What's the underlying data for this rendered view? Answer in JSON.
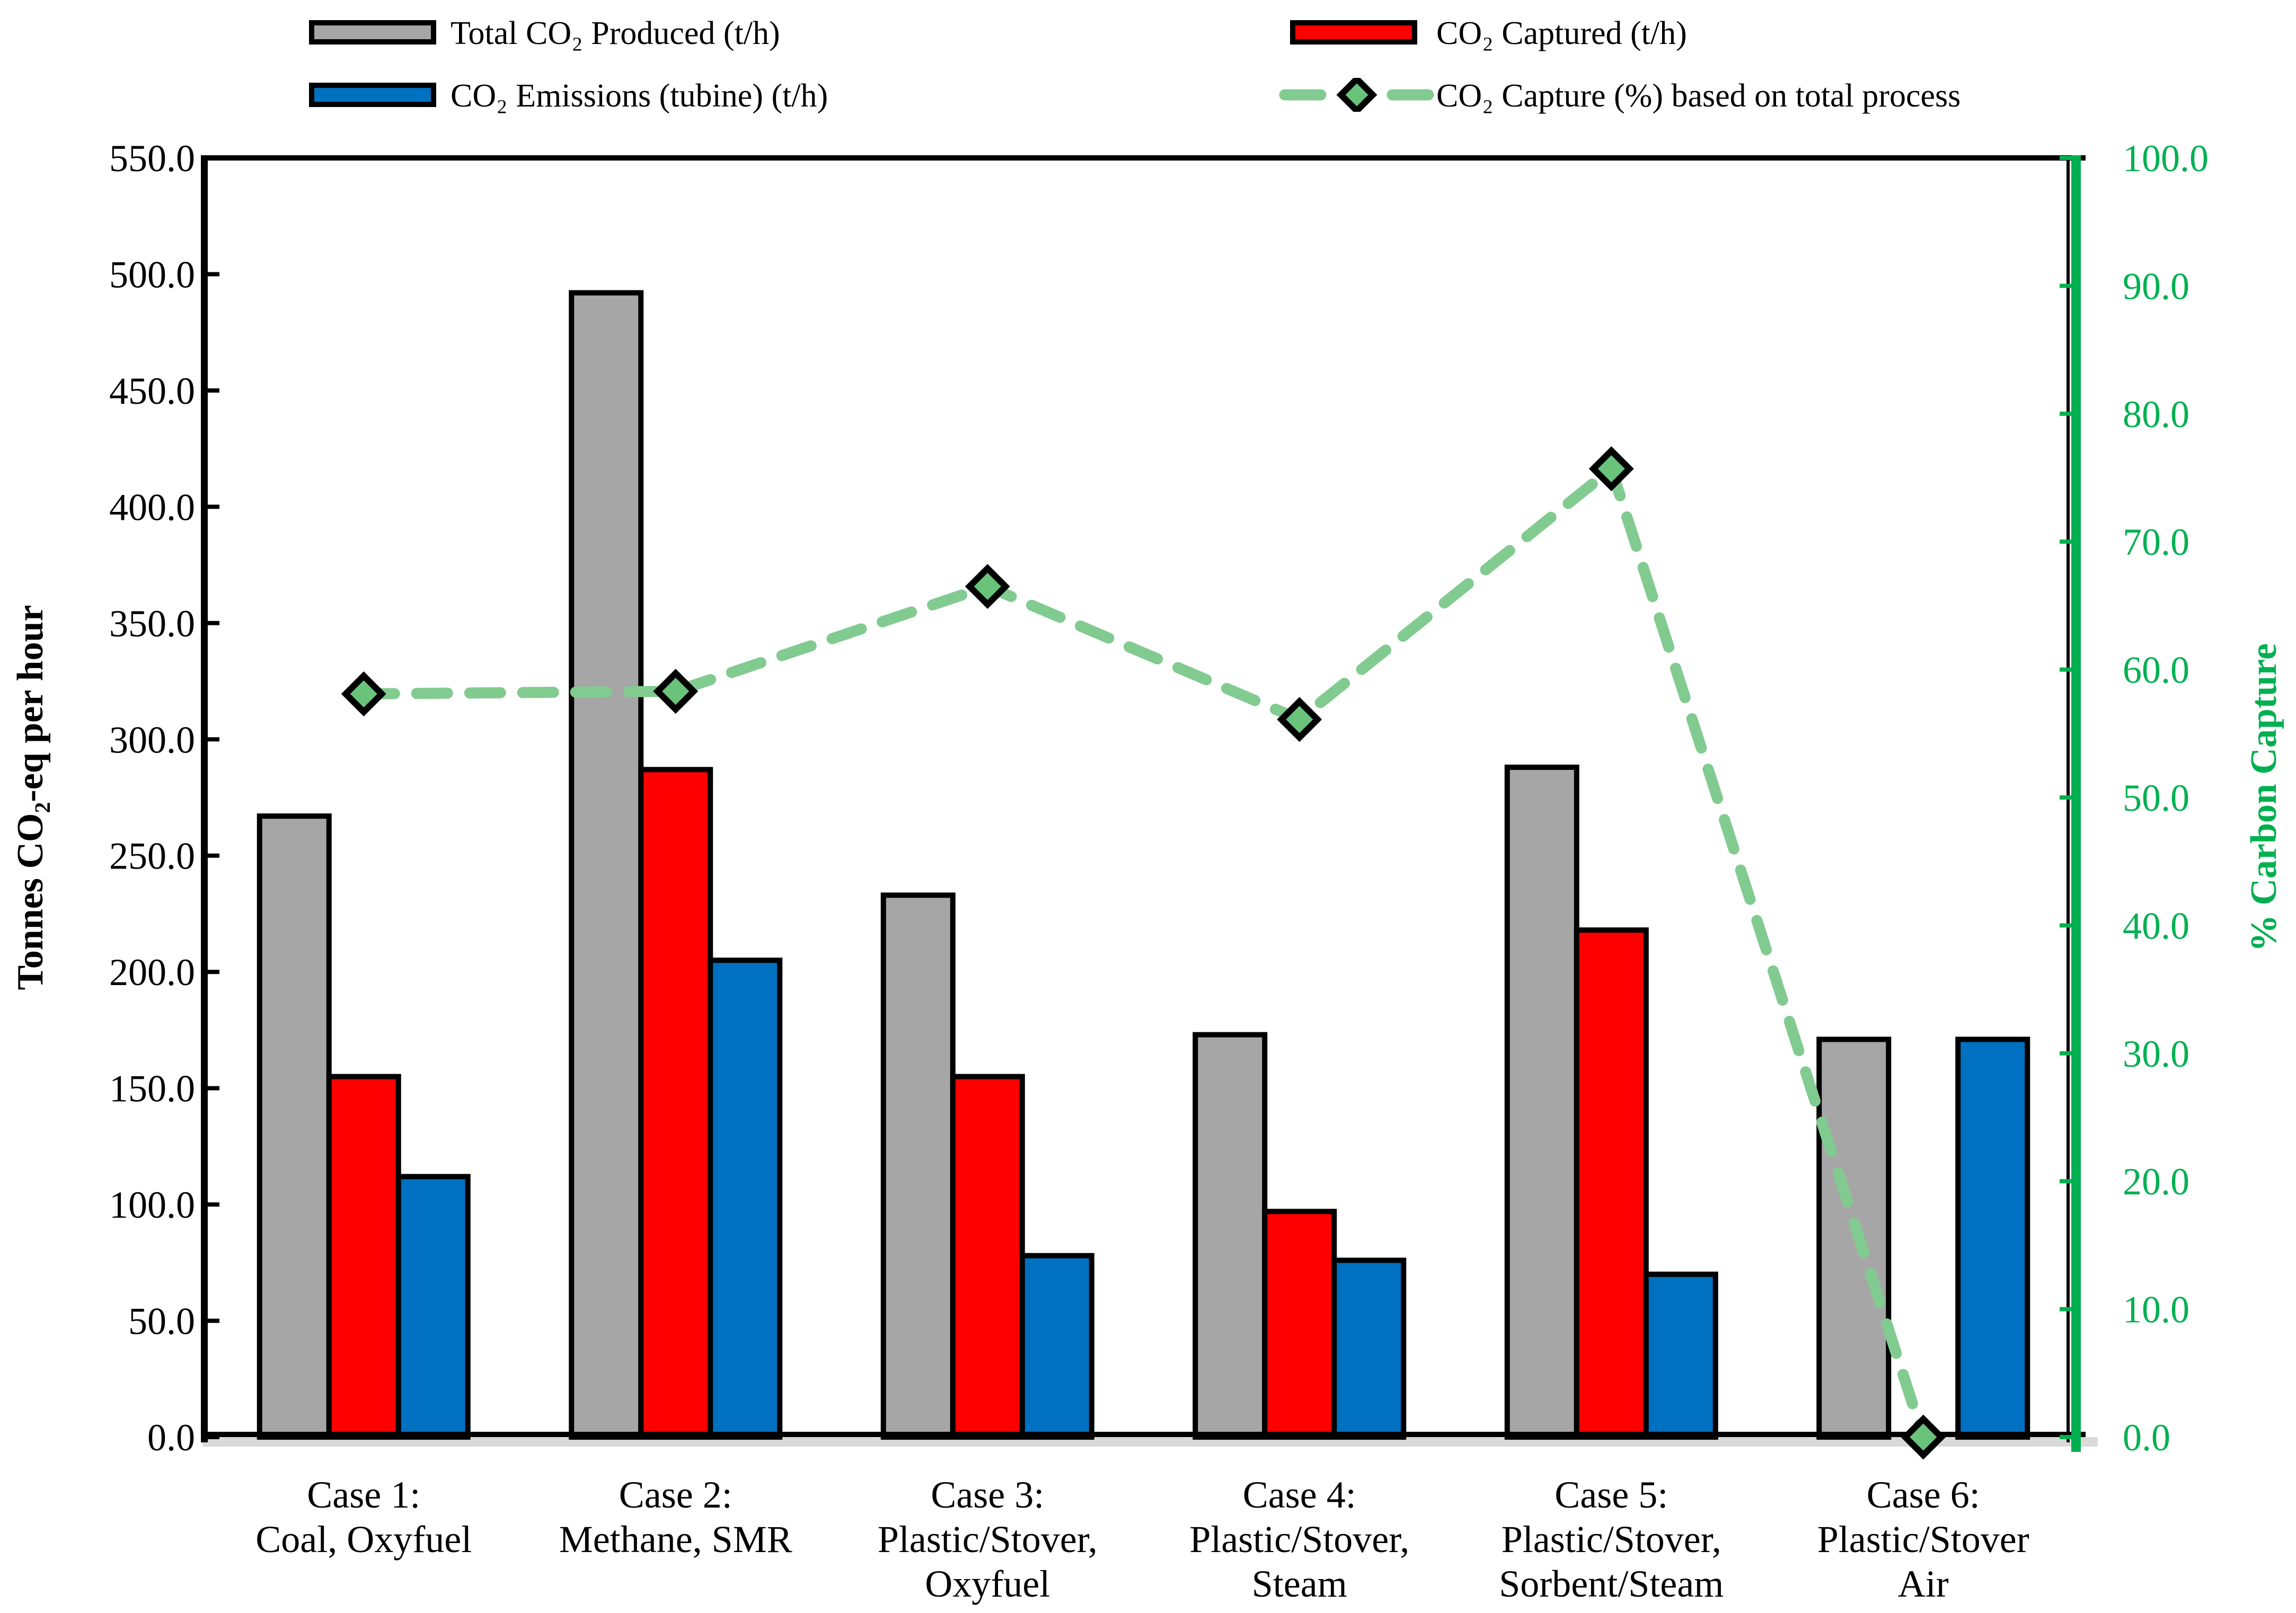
{
  "legend": {
    "items": [
      {
        "id": "total",
        "label": "Total CO₂ Produced (t/h)",
        "swatch": "bar",
        "color": "#A6A6A6"
      },
      {
        "id": "emissions",
        "label": "CO₂ Emissions (tubine) (t/h)",
        "swatch": "bar",
        "color": "#0070C0"
      },
      {
        "id": "captured",
        "label": "CO₂ Captured (t/h)",
        "swatch": "bar",
        "color": "#FF0000"
      },
      {
        "id": "capture-pct",
        "label": "CO₂ Capture (%) based on total process",
        "swatch": "dashed-line-diamond",
        "color": "#82CB90",
        "marker_color": "#69C37A"
      }
    ]
  },
  "chart_data": {
    "type": "bar-line-combo",
    "categories": [
      [
        "Case 1:",
        "Coal, Oxyfuel"
      ],
      [
        "Case 2:",
        "Methane, SMR"
      ],
      [
        "Case 3:",
        "Plastic/Stover,",
        "Oxyfuel"
      ],
      [
        "Case 4:",
        "Plastic/Stover,",
        "Steam"
      ],
      [
        "Case 5:",
        "Plastic/Stover,",
        "Sorbent/Steam"
      ],
      [
        "Case 6:",
        "Plastic/Stover",
        "Air"
      ]
    ],
    "bar_series": [
      {
        "name": "Total CO₂ Produced (t/h)",
        "color": "#A6A6A6",
        "axis": "left",
        "values": [
          267,
          492,
          233,
          173,
          288,
          171
        ]
      },
      {
        "name": "CO₂ Captured (t/h)",
        "color": "#FF0000",
        "axis": "left",
        "values": [
          155,
          287,
          155,
          97,
          218,
          0
        ]
      },
      {
        "name": "CO₂ Emissions (tubine) (t/h)",
        "color": "#0070C0",
        "axis": "left",
        "values": [
          112,
          205,
          78,
          76,
          70,
          171
        ]
      }
    ],
    "line_series": {
      "name": "CO₂ Capture (%) based on total process",
      "color": "#82CB90",
      "marker": "diamond",
      "marker_fill": "#69C37A",
      "marker_border": "#000000",
      "axis": "right",
      "values": [
        58.1,
        58.3,
        66.5,
        56.1,
        75.7,
        0.0
      ]
    },
    "left_axis": {
      "label": "Tonnes CO₂-eq per hour",
      "min": 0,
      "max": 550,
      "step": 50,
      "decimals": 1,
      "color": "#000000"
    },
    "right_axis": {
      "label": "% Carbon Capture",
      "min": 0,
      "max": 100,
      "step": 10,
      "decimals": 1,
      "color": "#00B050"
    },
    "grid": false,
    "legend_position": "top",
    "plot_background": "#FFFFFF",
    "baseline_shadow_color": "#D9D9D9",
    "bar_outline_color": "#000000"
  }
}
